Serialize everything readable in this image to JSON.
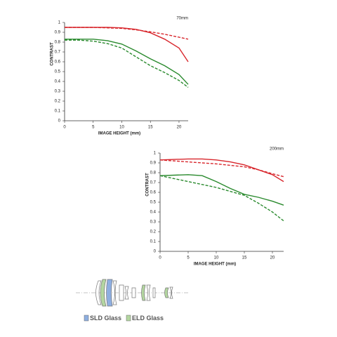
{
  "chart_data": [
    {
      "type": "line",
      "title": "70mm",
      "xlabel": "IMAGE HEIGHT (mm)",
      "ylabel": "CONTRAST",
      "x": [
        0,
        2.5,
        5,
        7.5,
        10,
        12.5,
        15,
        17.5,
        20,
        21.6
      ],
      "xlim": [
        0,
        21.6
      ],
      "xticks": [
        0,
        5,
        10,
        15,
        20
      ],
      "ylim": [
        0,
        1
      ],
      "yticks": [
        0,
        0.1,
        0.2,
        0.3,
        0.4,
        0.5,
        0.6,
        0.7,
        0.8,
        0.9,
        1
      ],
      "series": [
        {
          "color": "#d8262c",
          "dash": false,
          "values": [
            0.95,
            0.95,
            0.95,
            0.95,
            0.945,
            0.93,
            0.895,
            0.83,
            0.74,
            0.6
          ]
        },
        {
          "color": "#d8262c",
          "dash": true,
          "values": [
            0.95,
            0.95,
            0.95,
            0.945,
            0.94,
            0.925,
            0.905,
            0.88,
            0.85,
            0.83
          ]
        },
        {
          "color": "#2a8a2e",
          "dash": false,
          "values": [
            0.83,
            0.83,
            0.83,
            0.815,
            0.78,
            0.71,
            0.63,
            0.56,
            0.47,
            0.37
          ]
        },
        {
          "color": "#2a8a2e",
          "dash": true,
          "values": [
            0.82,
            0.82,
            0.81,
            0.785,
            0.74,
            0.65,
            0.56,
            0.49,
            0.41,
            0.34
          ]
        }
      ]
    },
    {
      "type": "line",
      "title": "200mm",
      "xlabel": "IMAGE HEIGHT (mm)",
      "ylabel": "CONTRAST",
      "x": [
        0,
        2.5,
        5,
        7.5,
        10,
        12.5,
        15,
        17.5,
        20,
        22
      ],
      "xlim": [
        0,
        22
      ],
      "xticks": [
        0,
        5,
        10,
        15,
        20
      ],
      "ylim": [
        0,
        1
      ],
      "yticks": [
        0,
        0.1,
        0.2,
        0.3,
        0.4,
        0.5,
        0.6,
        0.7,
        0.8,
        0.9,
        1
      ],
      "series": [
        {
          "color": "#d8262c",
          "dash": false,
          "values": [
            0.93,
            0.935,
            0.94,
            0.94,
            0.93,
            0.91,
            0.88,
            0.83,
            0.78,
            0.71
          ]
        },
        {
          "color": "#d8262c",
          "dash": true,
          "values": [
            0.93,
            0.92,
            0.91,
            0.9,
            0.89,
            0.875,
            0.86,
            0.83,
            0.79,
            0.76
          ]
        },
        {
          "color": "#2a8a2e",
          "dash": false,
          "values": [
            0.77,
            0.775,
            0.78,
            0.77,
            0.71,
            0.64,
            0.58,
            0.55,
            0.51,
            0.47
          ]
        },
        {
          "color": "#2a8a2e",
          "dash": true,
          "values": [
            0.77,
            0.74,
            0.71,
            0.68,
            0.65,
            0.61,
            0.57,
            0.49,
            0.4,
            0.31
          ]
        }
      ]
    }
  ],
  "lens_diagram": {
    "legend": [
      {
        "label": "SLD Glass",
        "color": "#8eaee0"
      },
      {
        "label": "ELD Glass",
        "color": "#b3d6a0"
      }
    ]
  }
}
